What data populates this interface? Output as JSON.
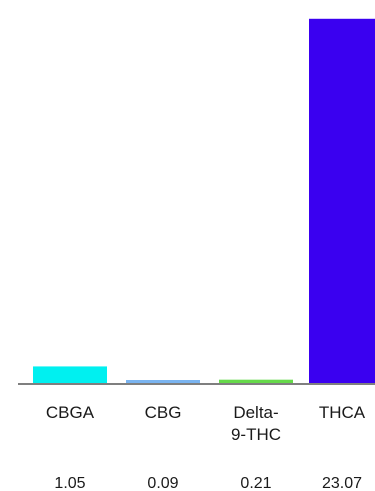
{
  "chart_data": {
    "type": "bar",
    "categories": [
      "CBGA",
      "CBG",
      "Delta-\n9-THC",
      "THCA"
    ],
    "values": [
      1.05,
      0.09,
      0.21,
      23.07
    ],
    "value_labels": [
      "1.05",
      "0.09",
      "0.21",
      "23.07"
    ],
    "colors": [
      "#00f0f0",
      "#7ab4f0",
      "#66d94a",
      "#3a00f0"
    ],
    "axis_color": "#555555",
    "title": "",
    "xlabel": "",
    "ylabel": "",
    "ylim": [
      0,
      23.5
    ],
    "grid": false,
    "legend": "none"
  }
}
